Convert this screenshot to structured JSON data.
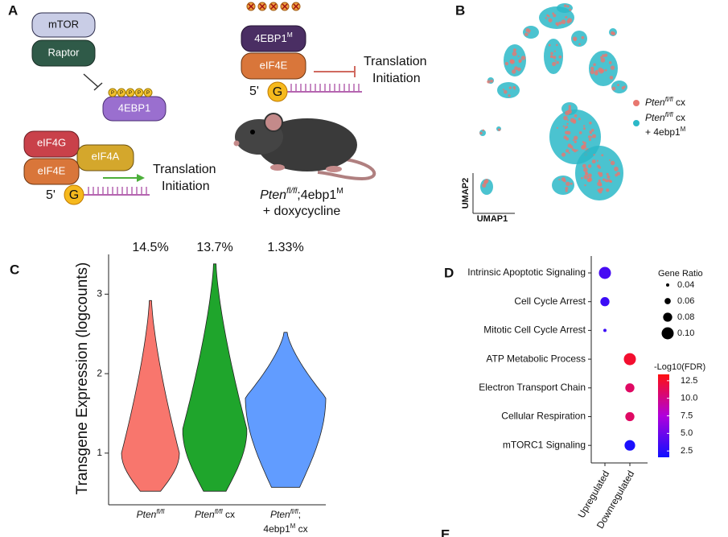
{
  "panel_a": {
    "label": "A",
    "left": {
      "mtor": "mTOR",
      "raptor": "Raptor",
      "target": "4EBP1",
      "phospho": "P",
      "eif4g": "eIF4G",
      "eif4a": "eIF4A",
      "eif4e": "eIF4E",
      "cap_end": "5'",
      "cap": "G",
      "outcome": [
        "Translation",
        "Initiation"
      ]
    },
    "right": {
      "target": "4EBP1",
      "target_sup": "M",
      "eif4e": "eIF4E",
      "cap_end": "5'",
      "cap": "G",
      "outcome": [
        "Translation",
        "Initiation"
      ],
      "model": {
        "gene": "Pten",
        "sup": "fl/fl",
        "sep": ";4ebp1",
        "sup2": "M",
        "line2": "+ doxycycline"
      }
    }
  },
  "panel_b": {
    "label": "B",
    "y_axis": "UMAP2",
    "x_axis": "UMAP1",
    "legend": [
      {
        "gene": "Pten",
        "sup": "fl/fl",
        "rest": " cx",
        "color": "#e8776f"
      },
      {
        "gene": "Pten",
        "sup": "fl/fl",
        "rest": " cx",
        "line2": "+ 4ebp1",
        "line2_sup": "M",
        "color": "#2bb8c8"
      }
    ]
  },
  "chart_data": [
    {
      "type": "violin",
      "panel": "C",
      "ylabel": "Transgene Expression (logcounts)",
      "categories": [
        {
          "gene": "Pten",
          "sup": "fl/fl"
        },
        {
          "gene": "Pten",
          "sup": "fl/fl",
          "rest": " cx"
        },
        {
          "gene": "Pten",
          "sup": "fl/fl",
          "rest": ";",
          "line2": "4ebp1",
          "line2_sup": "M",
          "line2_rest": " cx"
        }
      ],
      "values": [
        14.5,
        13.7,
        1.33
      ],
      "value_labels": [
        "14.5%",
        "13.7%",
        "1.33%"
      ],
      "colors": [
        "#f8766d",
        "#1fa52c",
        "#619cff"
      ],
      "ranges": [
        [
          0.52,
          2.92
        ],
        [
          0.52,
          3.38
        ],
        [
          0.57,
          2.52
        ]
      ],
      "modes": [
        1.0,
        1.3,
        1.7
      ],
      "ylim": [
        0.35,
        3.5
      ],
      "yticks": [
        1,
        2,
        3
      ]
    },
    {
      "type": "dot",
      "panel": "D",
      "categories": [
        "Upregulated",
        "Downregulated"
      ],
      "rows": [
        {
          "term": "Intrinsic Apoptotic Signaling",
          "group": "Upregulated",
          "gene_ratio": 0.1,
          "neg_log10_fdr": 3.6
        },
        {
          "term": "Cell Cycle Arrest",
          "group": "Upregulated",
          "gene_ratio": 0.08,
          "neg_log10_fdr": 3.2
        },
        {
          "term": "Mitotic Cell Cycle Arrest",
          "group": "Upregulated",
          "gene_ratio": 0.04,
          "neg_log10_fdr": 3.2
        },
        {
          "term": "ATP Metabolic Process",
          "group": "Downregulated",
          "gene_ratio": 0.1,
          "neg_log10_fdr": 12.5
        },
        {
          "term": "Electron Transport Chain",
          "group": "Downregulated",
          "gene_ratio": 0.08,
          "neg_log10_fdr": 11
        },
        {
          "term": "Cellular Respiration",
          "group": "Downregulated",
          "gene_ratio": 0.08,
          "neg_log10_fdr": 11
        },
        {
          "term": "mTORC1 Signaling",
          "group": "Downregulated",
          "gene_ratio": 0.09,
          "neg_log10_fdr": 2
        }
      ],
      "size_legend": {
        "title": "Gene Ratio",
        "lim": [
          0.04,
          0.1
        ],
        "ticks": [
          0.04,
          0.06,
          0.08,
          {
            "value": 0.1,
            "label": "0.10"
          }
        ]
      },
      "color_legend": {
        "title": "-Log10(FDR)",
        "lim": [
          1.6,
          13.4
        ],
        "colors": [
          "#1010ff",
          "#b000dc",
          "#ff1010"
        ],
        "ticks": [
          2.5,
          {
            "value": 5,
            "label": "5.0"
          },
          7.5,
          {
            "value": 10,
            "label": "10.0"
          },
          12.5
        ]
      }
    }
  ],
  "panel_e": {
    "label": "E"
  }
}
